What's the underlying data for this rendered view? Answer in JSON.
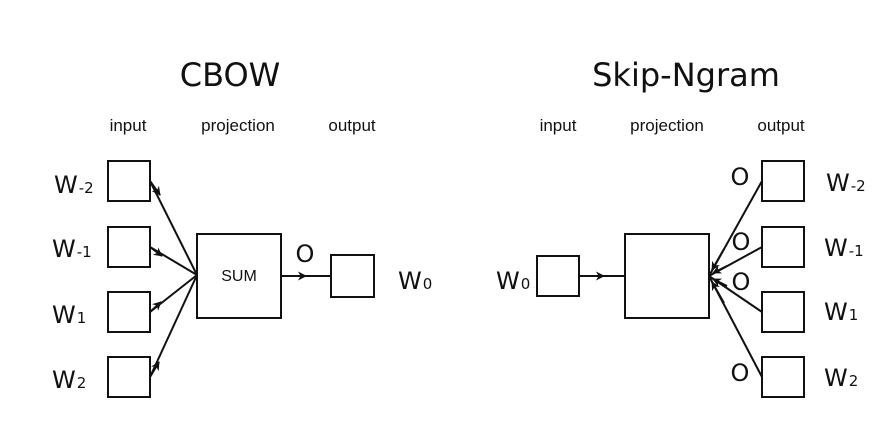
{
  "cbow": {
    "title": "CBOW",
    "columns": {
      "input": "input",
      "projection": "projection",
      "output": "output"
    },
    "inputs": [
      {
        "base": "W",
        "sub": "-2"
      },
      {
        "base": "W",
        "sub": "-1"
      },
      {
        "base": "W",
        "sub": "1"
      },
      {
        "base": "W",
        "sub": "2"
      }
    ],
    "projection_label": "SUM",
    "output_marker": "O",
    "output": {
      "base": "W",
      "sub": "0"
    }
  },
  "skipgram": {
    "title": "Skip-Ngram",
    "columns": {
      "input": "input",
      "projection": "projection",
      "output": "output"
    },
    "input": {
      "base": "W",
      "sub": "0"
    },
    "projection_label": "",
    "output_marker": "O",
    "outputs": [
      {
        "base": "W",
        "sub": "-2"
      },
      {
        "base": "W",
        "sub": "-1"
      },
      {
        "base": "W",
        "sub": "1"
      },
      {
        "base": "W",
        "sub": "2"
      }
    ]
  },
  "colors": {
    "stroke": "#111111",
    "background": "#ffffff"
  }
}
